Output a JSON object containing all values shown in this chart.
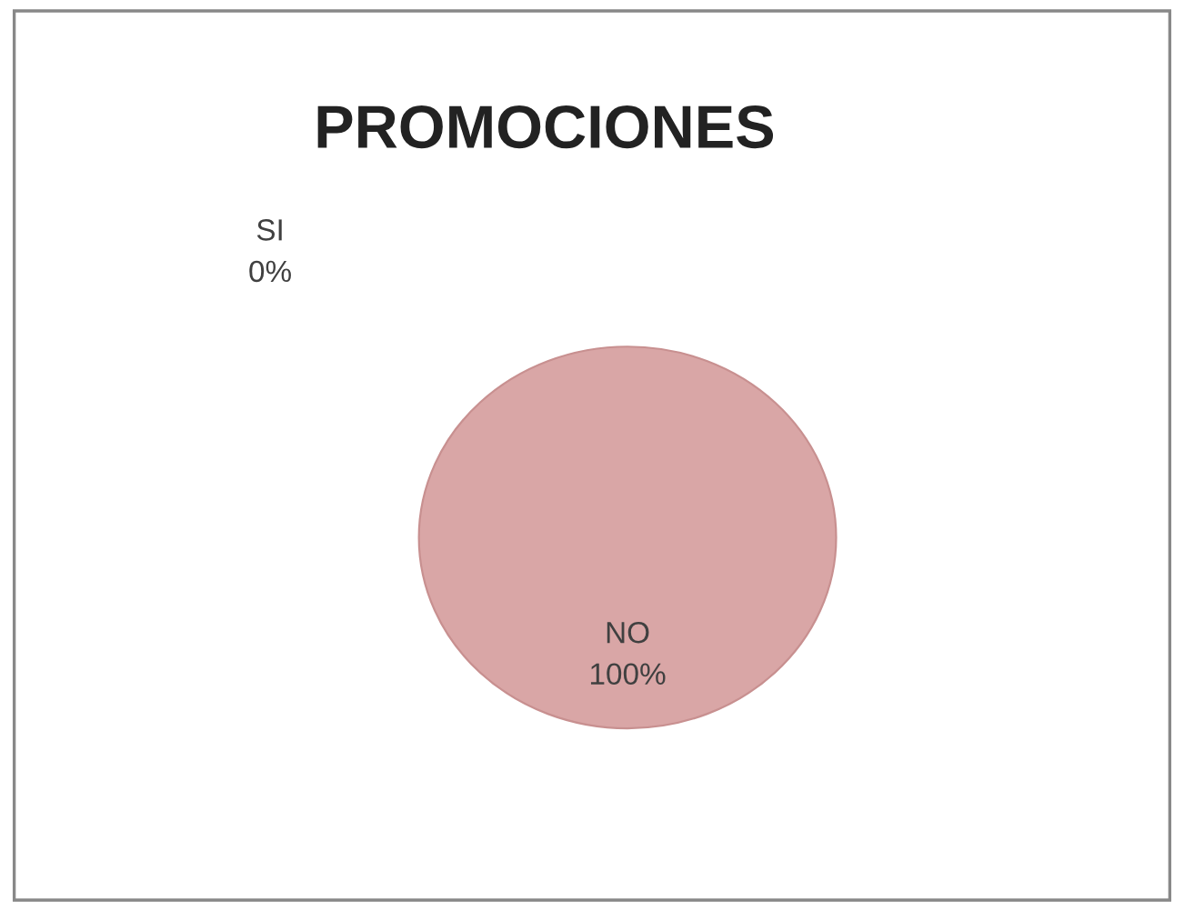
{
  "chart_data": {
    "type": "pie",
    "title": "PROMOCIONES",
    "categories": [
      "SI",
      "NO"
    ],
    "values": [
      0,
      100
    ],
    "value_labels": [
      "0%",
      "100%"
    ],
    "colors": [
      "#4f81bd",
      "#d9a6a6"
    ],
    "legend": false
  }
}
